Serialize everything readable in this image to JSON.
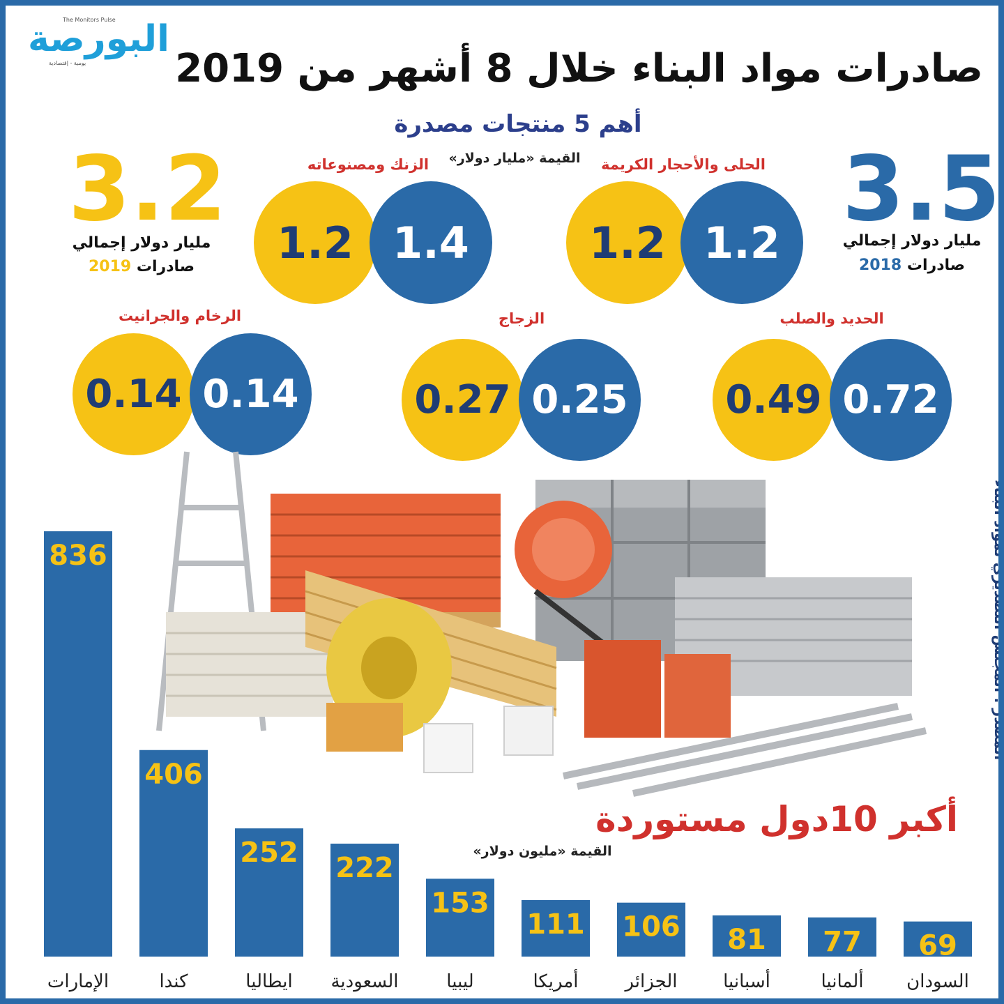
{
  "logo": {
    "ar": "البورصة",
    "en": "The Monitors Pulse",
    "sub": "يومية - إقتصادية"
  },
  "title": "صادرات مواد البناء خلال 8 أشهر من 2019",
  "subtitle": "أهم 5 منتجات مصدرة",
  "value_unit": "القيمة «مليار دولار»",
  "totals": {
    "y2018": {
      "value": "3.5",
      "label": "مليار دولار إجمالي",
      "sub": "صادرات",
      "year": "2018"
    },
    "y2019": {
      "value": "3.2",
      "label": "مليار دولار إجمالي",
      "sub": "صادرات",
      "year": "2019"
    }
  },
  "products": [
    {
      "name": "الحلى والأحجار الكريمة",
      "v2018": "1.2",
      "v2019": "1.2"
    },
    {
      "name": "الزنك ومصنوعاته",
      "v2018": "1.4",
      "v2019": "1.2"
    },
    {
      "name": "الحديد والصلب",
      "v2018": "0.72",
      "v2019": "0.49"
    },
    {
      "name": "الزجاج",
      "v2018": "0.25",
      "v2019": "0.27"
    },
    {
      "name": "الرخام والجرانيت",
      "v2018": "0.14",
      "v2019": "0.14"
    }
  ],
  "bars_title": "أكبر 10دول مستوردة",
  "bars_unit": "القيمة «مليون دولار»",
  "source": "المصدر : المجلس التصديري لمواد البناء",
  "colors": {
    "blue": "#2a6aa8",
    "yellow": "#f6c215",
    "red": "#d0312d",
    "navy": "#1f3c74"
  },
  "chart_data": {
    "type": "bar",
    "title": "أكبر 10دول مستوردة",
    "ylabel": "القيمة «مليون دولار»",
    "categories": [
      "الإمارات",
      "كندا",
      "ايطاليا",
      "السعودية",
      "ليبيا",
      "أمريكا",
      "الجزائر",
      "أسبانيا",
      "ألمانيا",
      "السودان"
    ],
    "values": [
      836,
      406,
      252,
      222,
      153,
      111,
      106,
      81,
      77,
      69
    ]
  }
}
